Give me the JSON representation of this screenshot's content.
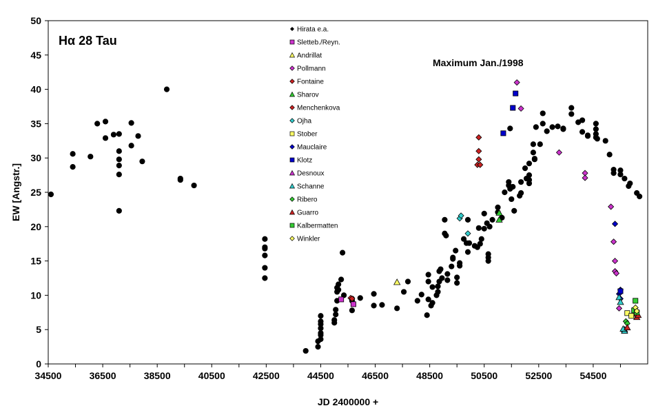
{
  "chart_data": {
    "type": "scatter",
    "title": "Hα 28 Tau",
    "xlabel": "JD 2400000 +",
    "ylabel": "EW [Angstr.]",
    "xlim": [
      34500,
      56500
    ],
    "ylim": [
      0,
      50
    ],
    "x_ticks": [
      "34500",
      "36500",
      "38500",
      "40500",
      "42500",
      "44500",
      "46500",
      "48500",
      "50500",
      "52500",
      "54500"
    ],
    "y_ticks": [
      "0",
      "5",
      "10",
      "15",
      "20",
      "25",
      "30",
      "35",
      "40",
      "45",
      "50"
    ],
    "grid": false,
    "legend_position": "top-center",
    "annotation": "Maximum Jan./1998",
    "series": [
      {
        "name": "Hirata e.a.",
        "marker": "circle",
        "color": "#000000",
        "points": [
          [
            34600,
            24.7
          ],
          [
            35400,
            30.6
          ],
          [
            35400,
            28.7
          ],
          [
            36050,
            30.2
          ],
          [
            36300,
            35
          ],
          [
            36600,
            35.3
          ],
          [
            36600,
            32.9
          ],
          [
            36900,
            33.4
          ],
          [
            37100,
            33.5
          ],
          [
            37100,
            31
          ],
          [
            37100,
            29.8
          ],
          [
            37100,
            28.9
          ],
          [
            37100,
            27.6
          ],
          [
            37100,
            22.3
          ],
          [
            37550,
            35.1
          ],
          [
            37550,
            31.8
          ],
          [
            37800,
            33.2
          ],
          [
            37950,
            29.5
          ],
          [
            38850,
            40
          ],
          [
            39350,
            27
          ],
          [
            39350,
            26.8
          ],
          [
            39850,
            26
          ],
          [
            42450,
            18.2
          ],
          [
            42450,
            17
          ],
          [
            42450,
            16.8
          ],
          [
            42450,
            15.8
          ],
          [
            42450,
            14
          ],
          [
            42450,
            12.5
          ],
          [
            43950,
            1.9
          ],
          [
            44400,
            2.5
          ],
          [
            44400,
            3.3
          ],
          [
            44500,
            3.6
          ],
          [
            44500,
            4.2
          ],
          [
            44500,
            4.5
          ],
          [
            44500,
            5.2
          ],
          [
            44500,
            5.8
          ],
          [
            44500,
            6.2
          ],
          [
            44500,
            7
          ],
          [
            45000,
            6
          ],
          [
            45000,
            6.4
          ],
          [
            45050,
            7.2
          ],
          [
            45050,
            7.9
          ],
          [
            45100,
            9.2
          ],
          [
            45100,
            10.5
          ],
          [
            45100,
            11.1
          ],
          [
            45150,
            11.6
          ],
          [
            45150,
            10.8
          ],
          [
            45250,
            12.3
          ],
          [
            45300,
            16.2
          ],
          [
            45350,
            10
          ],
          [
            45650,
            9.5
          ],
          [
            45650,
            9.2
          ],
          [
            45650,
            7.8
          ],
          [
            45950,
            9.6
          ],
          [
            46450,
            8.5
          ],
          [
            46450,
            10.2
          ],
          [
            46750,
            8.6
          ],
          [
            47300,
            8.1
          ],
          [
            47550,
            10.5
          ],
          [
            47700,
            12
          ],
          [
            48050,
            9.2
          ],
          [
            48200,
            10.1
          ],
          [
            48400,
            7.1
          ],
          [
            48450,
            9.4
          ],
          [
            48450,
            12
          ],
          [
            48450,
            13
          ],
          [
            48550,
            8.5
          ],
          [
            48600,
            8.9
          ],
          [
            48600,
            11.2
          ],
          [
            48750,
            10
          ],
          [
            48800,
            10.5
          ],
          [
            48800,
            11.3
          ],
          [
            48850,
            13.5
          ],
          [
            48850,
            12
          ],
          [
            48900,
            13.8
          ],
          [
            48950,
            12.5
          ],
          [
            49050,
            19
          ],
          [
            49050,
            21
          ],
          [
            49100,
            18.7
          ],
          [
            49150,
            12.2
          ],
          [
            49150,
            13.1
          ],
          [
            49300,
            14.2
          ],
          [
            49350,
            15.3
          ],
          [
            49350,
            15.5
          ],
          [
            49450,
            16.5
          ],
          [
            49500,
            11.8
          ],
          [
            49500,
            12.6
          ],
          [
            49600,
            14.3
          ],
          [
            49600,
            14.7
          ],
          [
            49750,
            18.2
          ],
          [
            49850,
            17.6
          ],
          [
            49900,
            21
          ],
          [
            49900,
            16.3
          ],
          [
            49950,
            17.6
          ],
          [
            50150,
            17.2
          ],
          [
            50250,
            17
          ],
          [
            50300,
            19.8
          ],
          [
            50350,
            17.5
          ],
          [
            50400,
            18.2
          ],
          [
            50500,
            21.9
          ],
          [
            50500,
            19.7
          ],
          [
            50600,
            20.5
          ],
          [
            50650,
            15.5
          ],
          [
            50650,
            15
          ],
          [
            50650,
            16
          ],
          [
            50700,
            20
          ],
          [
            50800,
            21
          ],
          [
            51000,
            22.8
          ],
          [
            51000,
            22.1
          ],
          [
            51150,
            21.3
          ],
          [
            51250,
            25
          ],
          [
            51400,
            26.5
          ],
          [
            51400,
            26
          ],
          [
            51450,
            25.5
          ],
          [
            51450,
            34.3
          ],
          [
            51500,
            24
          ],
          [
            51550,
            25.8
          ],
          [
            51600,
            22.3
          ],
          [
            51800,
            24.5
          ],
          [
            51850,
            26.5
          ],
          [
            51850,
            24.9
          ],
          [
            52000,
            28.5
          ],
          [
            52050,
            27
          ],
          [
            52150,
            27.5
          ],
          [
            52150,
            26.8
          ],
          [
            52150,
            26.3
          ],
          [
            52150,
            29.2
          ],
          [
            52300,
            32
          ],
          [
            52300,
            30.8
          ],
          [
            52350,
            29.8
          ],
          [
            52350,
            29.9
          ],
          [
            52400,
            34.5
          ],
          [
            52550,
            32
          ],
          [
            52650,
            36.5
          ],
          [
            52650,
            35
          ],
          [
            52800,
            33.9
          ],
          [
            53000,
            34.5
          ],
          [
            53200,
            34.6
          ],
          [
            53400,
            34.3
          ],
          [
            53400,
            34.2
          ],
          [
            53700,
            37.3
          ],
          [
            53700,
            36.4
          ],
          [
            53950,
            35.2
          ],
          [
            54100,
            35.5
          ],
          [
            54100,
            33.8
          ],
          [
            54300,
            33.3
          ],
          [
            54300,
            33.2
          ],
          [
            54600,
            35
          ],
          [
            54600,
            34.2
          ],
          [
            54600,
            33.5
          ],
          [
            54600,
            33
          ],
          [
            54650,
            32.8
          ],
          [
            54950,
            32.5
          ],
          [
            55100,
            30.5
          ],
          [
            55250,
            28.3
          ],
          [
            55250,
            27.8
          ],
          [
            55500,
            28.2
          ],
          [
            55500,
            27.6
          ],
          [
            55650,
            27
          ],
          [
            55800,
            25.9
          ],
          [
            55850,
            26.3
          ],
          [
            56100,
            24.9
          ],
          [
            56200,
            24.4
          ]
        ]
      },
      {
        "name": "Sletteb./Reyn.",
        "marker": "square",
        "color": "#cc33cc",
        "points": [
          [
            45250,
            9.4
          ],
          [
            45700,
            8.7
          ]
        ]
      },
      {
        "name": "Andrillat",
        "marker": "triangle",
        "color": "#ffff66",
        "points": [
          [
            47300,
            11.9
          ]
        ]
      },
      {
        "name": "Pollmann",
        "marker": "diamond",
        "color": "#cc33cc",
        "points": [
          [
            51700,
            41
          ],
          [
            51850,
            37.2
          ],
          [
            53250,
            30.8
          ],
          [
            54200,
            27.8
          ],
          [
            54200,
            27.1
          ],
          [
            55150,
            22.9
          ],
          [
            55250,
            17.8
          ],
          [
            55300,
            15
          ],
          [
            55300,
            13.5
          ],
          [
            55350,
            13.2
          ],
          [
            55450,
            8.1
          ]
        ]
      },
      {
        "name": "Fontaine",
        "marker": "diamond",
        "color": "#cc2222",
        "points": [
          [
            45600,
            9.6
          ],
          [
            50300,
            33
          ],
          [
            50300,
            31
          ],
          [
            50300,
            29.8
          ],
          [
            50250,
            29
          ],
          [
            50350,
            29
          ]
        ]
      },
      {
        "name": "Sharov",
        "marker": "triangle",
        "color": "#33cc33",
        "points": [
          [
            51050,
            22
          ],
          [
            51050,
            21
          ]
        ]
      },
      {
        "name": "Menchenkova",
        "marker": "diamond",
        "color": "#cc2222",
        "points": [
          [
            45650,
            9.5
          ]
        ]
      },
      {
        "name": "Ojha",
        "marker": "diamond",
        "color": "#33cccc",
        "points": [
          [
            49600,
            21.2
          ],
          [
            49650,
            21.6
          ],
          [
            49900,
            19
          ]
        ]
      },
      {
        "name": "Stober",
        "marker": "square",
        "color": "#ffff66",
        "points": [
          [
            55750,
            7.4
          ],
          [
            55900,
            7
          ]
        ]
      },
      {
        "name": "Mauclaire",
        "marker": "diamond",
        "color": "#0000cc",
        "points": [
          [
            55300,
            20.4
          ],
          [
            55500,
            10.8
          ],
          [
            55450,
            10.2
          ],
          [
            55500,
            9.5
          ]
        ]
      },
      {
        "name": "Klotz",
        "marker": "square",
        "color": "#0000cc",
        "points": [
          [
            51200,
            33.6
          ],
          [
            51550,
            37.3
          ],
          [
            51650,
            39.4
          ],
          [
            55500,
            10.6
          ]
        ]
      },
      {
        "name": "Desnoux",
        "marker": "triangle",
        "color": "#cc33cc",
        "points": [
          [
            55650,
            5
          ]
        ]
      },
      {
        "name": "Schanne",
        "marker": "triangle",
        "color": "#33cccc",
        "points": [
          [
            55450,
            9.7
          ],
          [
            55500,
            9
          ],
          [
            55650,
            4.8
          ],
          [
            55600,
            5.1
          ]
        ]
      },
      {
        "name": "Ribero",
        "marker": "diamond",
        "color": "#33cc33",
        "points": [
          [
            55700,
            6.2
          ],
          [
            55750,
            5.9
          ]
        ]
      },
      {
        "name": "Guarro",
        "marker": "triangle",
        "color": "#cc2222",
        "points": [
          [
            55750,
            5.3
          ],
          [
            56100,
            6.8
          ],
          [
            56100,
            7.3
          ],
          [
            56150,
            7.1
          ]
        ]
      },
      {
        "name": "Kalbermatten",
        "marker": "square",
        "color": "#33cc33",
        "points": [
          [
            56050,
            9.2
          ],
          [
            56000,
            7.8
          ],
          [
            56100,
            7.5
          ]
        ]
      },
      {
        "name": "Winkler",
        "marker": "diamond",
        "color": "#ffff66",
        "points": [
          [
            56050,
            8.2
          ],
          [
            56100,
            7.7
          ]
        ]
      }
    ]
  }
}
